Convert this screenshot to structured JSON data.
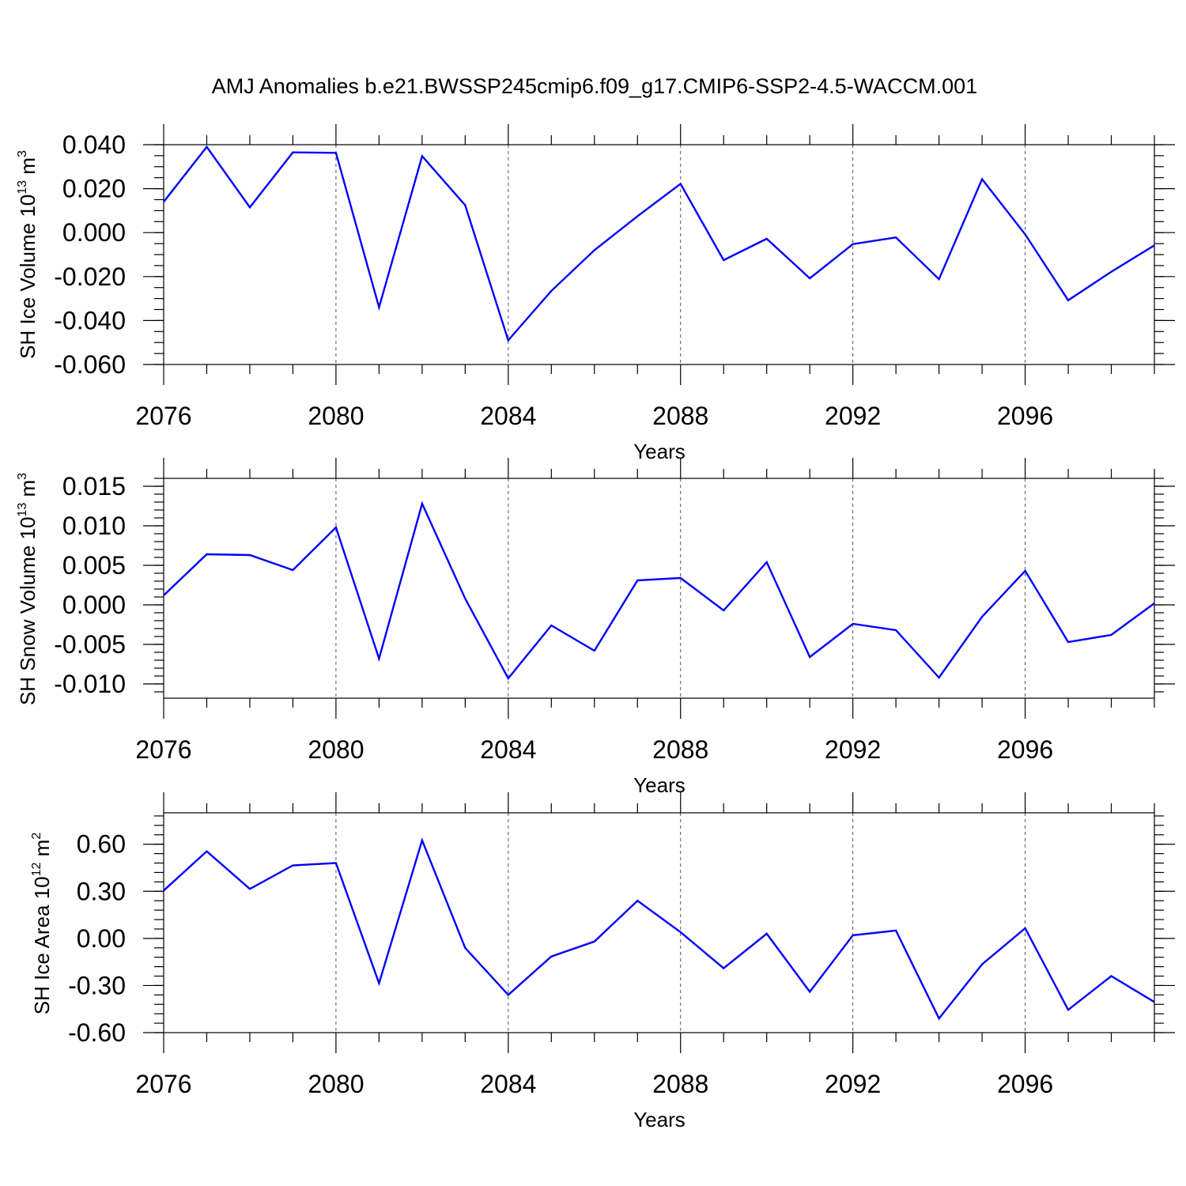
{
  "figure": {
    "title": "AMJ Anomalies b.e21.BWSSP245cmip6.f09_g17.CMIP6-SSP2-4.5-WACCM.001"
  },
  "colors": {
    "series": "#0000ff",
    "axes": "#000000",
    "grid": "#555555"
  },
  "chart_data": [
    {
      "type": "line",
      "ylabel": "SH Ice Volume 10",
      "ylabel_exp": "13",
      "ylabel_unit": " m",
      "ylabel_unit_exp": "3",
      "xlabel": "Years",
      "xlim": [
        2076,
        2099
      ],
      "ylim": [
        -0.06,
        0.04
      ],
      "yticks": [
        -0.06,
        -0.04,
        -0.02,
        0.0,
        0.02,
        0.04
      ],
      "ytick_labels": [
        "-0.060",
        "-0.040",
        "-0.020",
        "0.000",
        "0.020",
        "0.040"
      ],
      "ytop": 0.04,
      "ybottom": -0.06,
      "yminor_step": 0.005,
      "xticks": [
        2076,
        2080,
        2084,
        2088,
        2092,
        2096
      ],
      "xtick_labels": [
        "2076",
        "2080",
        "2084",
        "2088",
        "2092",
        "2096"
      ],
      "grid_x": [
        2080,
        2084,
        2088,
        2092,
        2096
      ],
      "series": [
        {
          "name": "SH Ice Volume",
          "x": [
            2076,
            2077,
            2078,
            2079,
            2080,
            2081,
            2082,
            2083,
            2084,
            2085,
            2086,
            2087,
            2088,
            2089,
            2090,
            2091,
            2092,
            2093,
            2094,
            2095,
            2096,
            2097,
            2098,
            2099
          ],
          "values": [
            0.014,
            0.039,
            0.0115,
            0.0365,
            0.0363,
            -0.034,
            0.0348,
            0.0125,
            -0.049,
            -0.0265,
            -0.008,
            0.0075,
            0.0222,
            -0.0125,
            -0.0028,
            -0.0208,
            -0.0052,
            -0.0022,
            -0.0212,
            0.0243,
            -0.0008,
            -0.0308,
            -0.0178,
            -0.0058
          ]
        }
      ]
    },
    {
      "type": "line",
      "ylabel": "SH Snow Volume 10",
      "ylabel_exp": "13",
      "ylabel_unit": " m",
      "ylabel_unit_exp": "3",
      "xlabel": "Years",
      "xlim": [
        2076,
        2099
      ],
      "ylim": [
        -0.0118,
        0.016
      ],
      "yticks": [
        -0.01,
        -0.005,
        0.0,
        0.005,
        0.01,
        0.015
      ],
      "ytick_labels": [
        "-0.010",
        "-0.005",
        "0.000",
        "0.005",
        "0.010",
        "0.015"
      ],
      "ytop": 0.016,
      "ybottom": -0.0118,
      "yminor_step": 0.001,
      "xticks": [
        2076,
        2080,
        2084,
        2088,
        2092,
        2096
      ],
      "xtick_labels": [
        "2076",
        "2080",
        "2084",
        "2088",
        "2092",
        "2096"
      ],
      "grid_x": [
        2080,
        2084,
        2088,
        2092,
        2096
      ],
      "series": [
        {
          "name": "SH Snow Volume",
          "x": [
            2076,
            2077,
            2078,
            2079,
            2080,
            2081,
            2082,
            2083,
            2084,
            2085,
            2086,
            2087,
            2088,
            2089,
            2090,
            2091,
            2092,
            2093,
            2094,
            2095,
            2096,
            2097,
            2098,
            2099
          ],
          "values": [
            0.0012,
            0.0064,
            0.0063,
            0.0044,
            0.0098,
            -0.0068,
            0.0128,
            0.0008,
            -0.0093,
            -0.0026,
            -0.0058,
            0.0031,
            0.0034,
            -0.0007,
            0.0054,
            -0.0066,
            -0.0024,
            -0.0032,
            -0.0092,
            -0.0015,
            0.0043,
            -0.0047,
            -0.0038,
            0.0002
          ]
        }
      ]
    },
    {
      "type": "line",
      "ylabel": "SH Ice Area 10",
      "ylabel_exp": "12",
      "ylabel_unit": " m",
      "ylabel_unit_exp": "2",
      "xlabel": "Years",
      "xlim": [
        2076,
        2099
      ],
      "ylim": [
        -0.6,
        0.8
      ],
      "yticks": [
        -0.6,
        -0.3,
        0.0,
        0.3,
        0.6
      ],
      "ytick_labels": [
        "-0.60",
        "-0.30",
        "0.00",
        "0.30",
        "0.60"
      ],
      "ytop": 0.8,
      "ybottom": -0.6,
      "yminor_step": 0.06,
      "xticks": [
        2076,
        2080,
        2084,
        2088,
        2092,
        2096
      ],
      "xtick_labels": [
        "2076",
        "2080",
        "2084",
        "2088",
        "2092",
        "2096"
      ],
      "grid_x": [
        2080,
        2084,
        2088,
        2092,
        2096
      ],
      "series": [
        {
          "name": "SH Ice Area",
          "x": [
            2076,
            2077,
            2078,
            2079,
            2080,
            2081,
            2082,
            2083,
            2084,
            2085,
            2086,
            2087,
            2088,
            2089,
            2090,
            2091,
            2092,
            2093,
            2094,
            2095,
            2096,
            2097,
            2098,
            2099
          ],
          "values": [
            0.305,
            0.555,
            0.315,
            0.465,
            0.48,
            -0.285,
            0.625,
            -0.06,
            -0.36,
            -0.115,
            -0.02,
            0.24,
            0.04,
            -0.19,
            0.03,
            -0.34,
            0.02,
            0.05,
            -0.51,
            -0.165,
            0.065,
            -0.455,
            -0.24,
            -0.405
          ]
        }
      ]
    }
  ]
}
